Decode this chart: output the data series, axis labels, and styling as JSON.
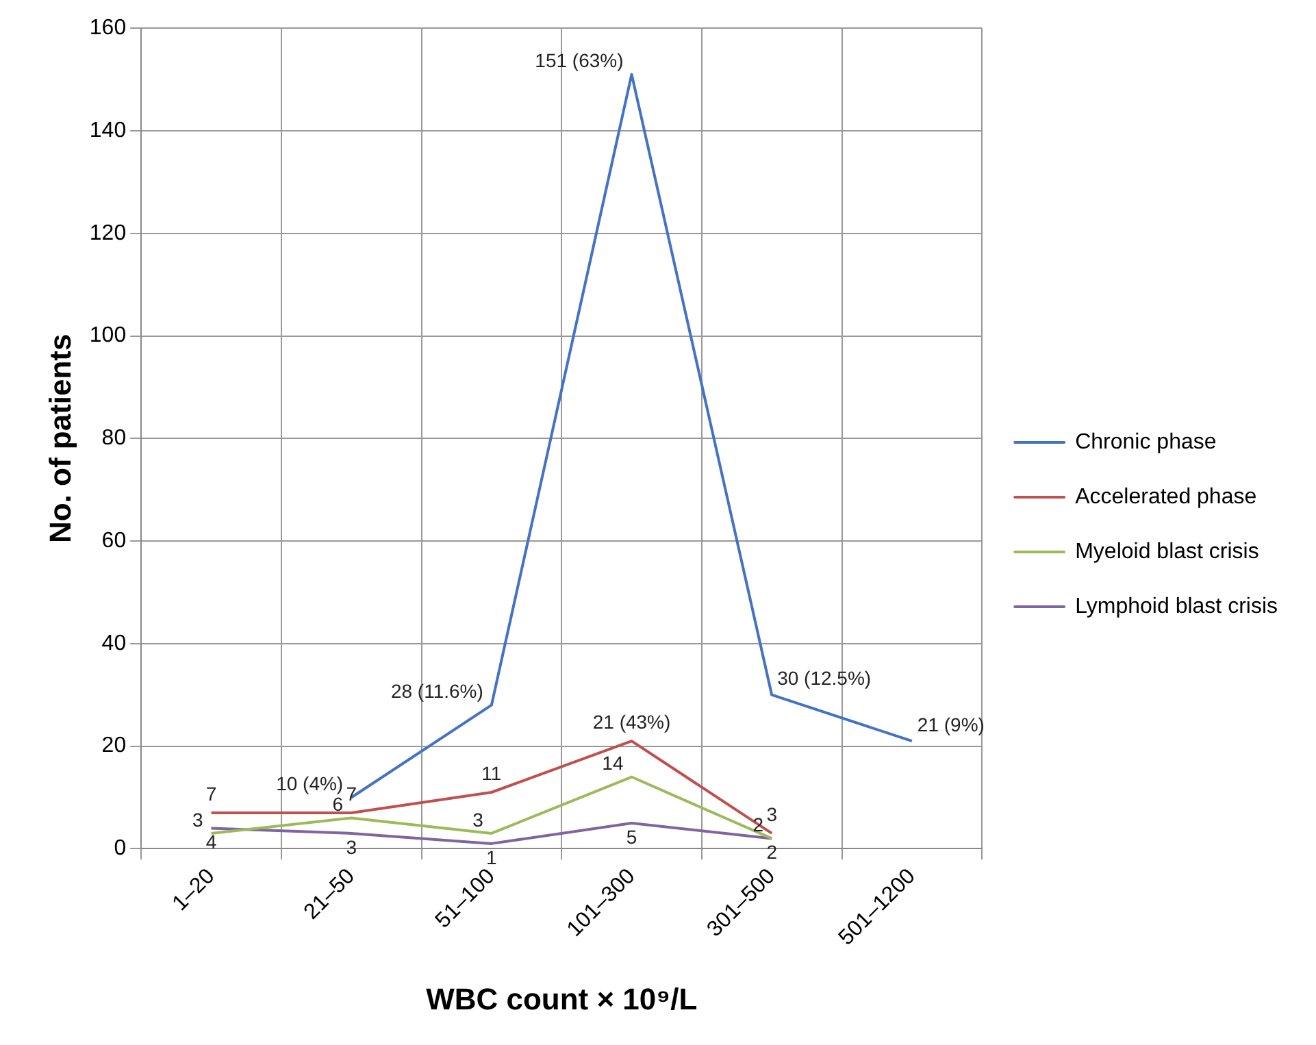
{
  "chart_data": {
    "type": "line",
    "xlabel": "WBC count × 10⁹/L",
    "ylabel": "No. of patients",
    "categories": [
      "1–20",
      "21–50",
      "51–100",
      "101–300",
      "301–500",
      "501–1200"
    ],
    "series": [
      {
        "name": "Chronic phase",
        "color": "#4472c4",
        "values": [
          null,
          10,
          28,
          151,
          30,
          21
        ],
        "value_labels": [
          null,
          "10 (4%)",
          "28 (11.6%)",
          "151 (63%)",
          "30 (12.5%)",
          "21 (9%)"
        ]
      },
      {
        "name": "Accelerated phase",
        "color": "#c0504d",
        "values": [
          7,
          7,
          11,
          21,
          3,
          null
        ],
        "value_labels": [
          "7",
          "7",
          "11",
          "21 (43%)",
          "3",
          null
        ]
      },
      {
        "name": "Myeloid blast crisis",
        "color": "#9bbb59",
        "values": [
          3,
          6,
          3,
          14,
          2,
          null
        ],
        "value_labels": [
          "3",
          "6",
          "3",
          "14",
          "2",
          null
        ]
      },
      {
        "name": "Lymphoid blast crisis",
        "color": "#8064a2",
        "values": [
          4,
          3,
          1,
          5,
          2,
          null
        ],
        "value_labels": [
          "4",
          "3",
          "1",
          "5",
          "2",
          null
        ]
      }
    ],
    "ylim": [
      0,
      160
    ],
    "yticks": [
      0,
      20,
      40,
      60,
      80,
      100,
      120,
      140,
      160
    ],
    "grid": true,
    "legend": "right",
    "marker": "none",
    "line_style": "solid"
  }
}
